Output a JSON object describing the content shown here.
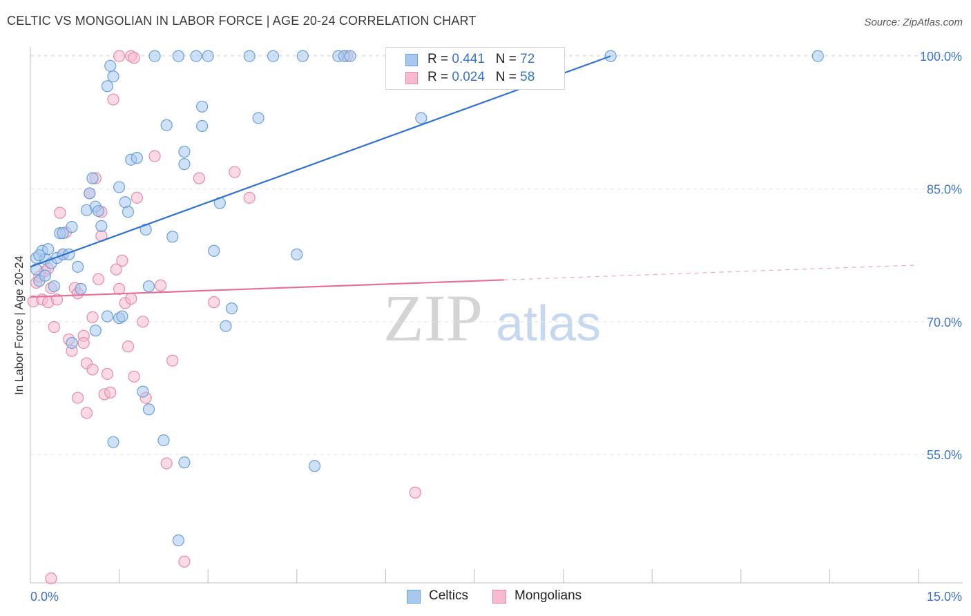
{
  "title": "CELTIC VS MONGOLIAN IN LABOR FORCE | AGE 20-24 CORRELATION CHART",
  "source": "Source: ZipAtlas.com",
  "watermark": {
    "zip": "ZIP",
    "atlas": "atlas"
  },
  "legend_top": [
    {
      "r_label": "R =",
      "r_value": "0.441",
      "n_label": "N =",
      "n_value": "72"
    },
    {
      "r_label": "R =",
      "r_value": "0.024",
      "n_label": "N =",
      "n_value": "58"
    }
  ],
  "legend_bottom": [
    "Celtics",
    "Mongolians"
  ],
  "colors": {
    "celtics_fill": "#a8c8ee",
    "celtics_stroke": "#6a9fd8",
    "celtics_line": "#2f72d0",
    "mongolians_fill": "#f6bccd",
    "mongolians_stroke": "#e88aa7",
    "mongolians_line": "#e4709a",
    "grid": "#e2e2e2",
    "tick_text": "#3b74c6"
  },
  "chart_data": {
    "type": "scatter",
    "title": "CELTIC VS MONGOLIAN IN LABOR FORCE | AGE 20-24 CORRELATION CHART",
    "xlabel": "",
    "ylabel": "In Labor Force | Age 20-24",
    "xlim": [
      0,
      15
    ],
    "ylim": [
      40.5,
      101.5
    ],
    "x_tick_labels": [
      "0.0%",
      "15.0%"
    ],
    "y_ticks": [
      55,
      70,
      85,
      100
    ],
    "y_tick_labels": [
      "55.0%",
      "70.0%",
      "85.0%",
      "100.0%"
    ],
    "grid": true,
    "legend_placement": "top-center",
    "series": [
      {
        "name": "Celtics",
        "r": 0.441,
        "n": 72,
        "trend": {
          "x": [
            0.0,
            9.8
          ],
          "y": [
            76.2,
            100.0
          ],
          "solid_to": 9.8
        },
        "points": [
          [
            0.1,
            77.2
          ],
          [
            0.1,
            75.9
          ],
          [
            0.15,
            74.6
          ],
          [
            0.2,
            78.0
          ],
          [
            0.25,
            77.1
          ],
          [
            0.3,
            78.2
          ],
          [
            0.35,
            76.6
          ],
          [
            0.4,
            74.0
          ],
          [
            0.45,
            77.2
          ],
          [
            0.5,
            80.0
          ],
          [
            0.55,
            77.6
          ],
          [
            0.65,
            77.6
          ],
          [
            0.7,
            80.7
          ],
          [
            0.8,
            76.2
          ],
          [
            0.85,
            73.7
          ],
          [
            0.95,
            82.6
          ],
          [
            1.0,
            84.5
          ],
          [
            1.05,
            86.2
          ],
          [
            1.1,
            83.0
          ],
          [
            1.15,
            82.5
          ],
          [
            1.2,
            80.8
          ],
          [
            1.3,
            96.6
          ],
          [
            1.35,
            98.9
          ],
          [
            1.4,
            97.7
          ],
          [
            1.5,
            85.2
          ],
          [
            1.6,
            83.5
          ],
          [
            1.65,
            82.4
          ],
          [
            1.7,
            88.3
          ],
          [
            1.8,
            88.5
          ],
          [
            1.95,
            80.4
          ],
          [
            2.0,
            74.0
          ],
          [
            2.1,
            100.0
          ],
          [
            2.3,
            92.2
          ],
          [
            2.4,
            79.6
          ],
          [
            2.5,
            100.0
          ],
          [
            2.6,
            87.8
          ],
          [
            2.6,
            89.2
          ],
          [
            2.8,
            100.0
          ],
          [
            2.9,
            92.1
          ],
          [
            2.9,
            94.3
          ],
          [
            3.0,
            100.0
          ],
          [
            3.1,
            78.0
          ],
          [
            3.2,
            83.4
          ],
          [
            3.3,
            69.5
          ],
          [
            3.4,
            71.5
          ],
          [
            3.7,
            100.0
          ],
          [
            3.85,
            93.0
          ],
          [
            4.1,
            100.0
          ],
          [
            4.5,
            77.6
          ],
          [
            4.6,
            100.0
          ],
          [
            5.2,
            100.0
          ],
          [
            5.3,
            100.0
          ],
          [
            5.4,
            100.0
          ],
          [
            6.5,
            100.0
          ],
          [
            6.6,
            93.0
          ],
          [
            9.8,
            100.0
          ],
          [
            13.3,
            100.0
          ],
          [
            0.7,
            67.6
          ],
          [
            1.1,
            69.0
          ],
          [
            1.3,
            70.6
          ],
          [
            1.5,
            70.4
          ],
          [
            1.9,
            62.1
          ],
          [
            2.0,
            60.1
          ],
          [
            1.4,
            56.4
          ],
          [
            2.25,
            56.6
          ],
          [
            2.6,
            54.1
          ],
          [
            4.8,
            53.7
          ],
          [
            2.5,
            45.3
          ],
          [
            0.25,
            75.2
          ],
          [
            0.55,
            80.0
          ],
          [
            1.55,
            70.6
          ],
          [
            0.15,
            77.5
          ]
        ]
      },
      {
        "name": "Mongolians",
        "r": 0.024,
        "n": 58,
        "trend": {
          "x": [
            0.0,
            15.0
          ],
          "y": [
            72.8,
            76.4
          ],
          "solid_to": 8.0
        },
        "points": [
          [
            0.05,
            72.3
          ],
          [
            0.1,
            74.4
          ],
          [
            0.15,
            75.1
          ],
          [
            0.2,
            72.5
          ],
          [
            0.25,
            75.7
          ],
          [
            0.3,
            72.2
          ],
          [
            0.35,
            73.8
          ],
          [
            0.4,
            69.4
          ],
          [
            0.45,
            72.5
          ],
          [
            0.5,
            82.3
          ],
          [
            0.55,
            77.6
          ],
          [
            0.6,
            80.1
          ],
          [
            0.65,
            68.0
          ],
          [
            0.7,
            66.7
          ],
          [
            0.75,
            73.8
          ],
          [
            0.8,
            73.2
          ],
          [
            0.9,
            68.4
          ],
          [
            0.95,
            65.3
          ],
          [
            1.0,
            84.5
          ],
          [
            1.05,
            70.5
          ],
          [
            1.1,
            86.2
          ],
          [
            1.15,
            74.8
          ],
          [
            1.2,
            82.4
          ],
          [
            1.25,
            61.8
          ],
          [
            1.3,
            64.1
          ],
          [
            1.35,
            62.0
          ],
          [
            1.5,
            73.7
          ],
          [
            1.55,
            76.9
          ],
          [
            1.6,
            72.1
          ],
          [
            1.7,
            72.6
          ],
          [
            1.75,
            63.8
          ],
          [
            1.8,
            84.0
          ],
          [
            1.9,
            70.0
          ],
          [
            1.95,
            61.4
          ],
          [
            2.1,
            88.7
          ],
          [
            2.2,
            74.1
          ],
          [
            2.3,
            54.0
          ],
          [
            2.4,
            65.6
          ],
          [
            2.6,
            42.9
          ],
          [
            2.85,
            86.2
          ],
          [
            3.1,
            72.2
          ],
          [
            3.45,
            86.9
          ],
          [
            3.7,
            84.0
          ],
          [
            6.5,
            50.7
          ],
          [
            1.4,
            95.1
          ],
          [
            1.5,
            100.0
          ],
          [
            1.7,
            100.0
          ],
          [
            1.75,
            99.8
          ],
          [
            5.35,
            100.0
          ],
          [
            0.35,
            41.0
          ],
          [
            0.8,
            61.4
          ],
          [
            0.95,
            59.7
          ],
          [
            1.2,
            79.7
          ],
          [
            0.3,
            76.0
          ],
          [
            0.9,
            67.6
          ],
          [
            1.45,
            75.9
          ],
          [
            1.65,
            67.2
          ],
          [
            1.05,
            64.6
          ]
        ]
      }
    ]
  }
}
